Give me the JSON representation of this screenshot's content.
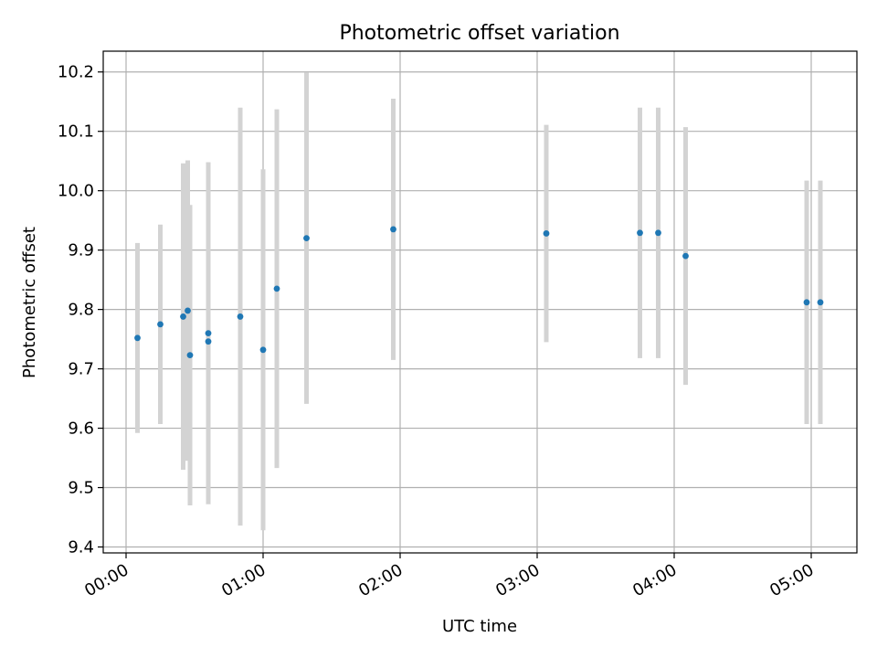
{
  "chart_data": {
    "type": "scatter",
    "title": "Photometric offset variation",
    "xlabel": "UTC time",
    "ylabel": "Photometric offset",
    "x_ticks": [
      "00:00",
      "01:00",
      "02:00",
      "03:00",
      "04:00",
      "05:00"
    ],
    "y_ticks": [
      "9.4",
      "9.5",
      "9.6",
      "9.7",
      "9.8",
      "9.9",
      "10.0",
      "10.1",
      "10.2"
    ],
    "xlim": [
      "-00:10",
      "05:20"
    ],
    "ylim": [
      9.39,
      10.235
    ],
    "grid": true,
    "legend": "none",
    "marker_color": "#1f77b4",
    "errorbar_color": "#d3d3d3",
    "points": [
      {
        "x": "00:05",
        "y": 9.752,
        "err": 0.16
      },
      {
        "x": "00:15",
        "y": 9.775,
        "err": 0.168
      },
      {
        "x": "00:25",
        "y": 9.788,
        "err": 0.258
      },
      {
        "x": "00:27",
        "y": 9.798,
        "err": 0.253
      },
      {
        "x": "00:28",
        "y": 9.723,
        "err": 0.253
      },
      {
        "x": "00:36",
        "y": 9.76,
        "err": 0.288
      },
      {
        "x": "00:36",
        "y": 9.746,
        "err": 0.0
      },
      {
        "x": "00:50",
        "y": 9.788,
        "err": 0.352
      },
      {
        "x": "01:00",
        "y": 9.732,
        "err": 0.304
      },
      {
        "x": "01:06",
        "y": 9.835,
        "err": 0.302
      },
      {
        "x": "01:19",
        "y": 9.92,
        "err": 0.279
      },
      {
        "x": "01:57",
        "y": 9.935,
        "err": 0.22
      },
      {
        "x": "03:04",
        "y": 9.928,
        "err": 0.183
      },
      {
        "x": "03:45",
        "y": 9.929,
        "err": 0.211
      },
      {
        "x": "03:53",
        "y": 9.929,
        "err": 0.211
      },
      {
        "x": "04:05",
        "y": 9.89,
        "err": 0.217
      },
      {
        "x": "04:58",
        "y": 9.812,
        "err": 0.205
      },
      {
        "x": "05:04",
        "y": 9.812,
        "err": 0.205
      }
    ]
  }
}
